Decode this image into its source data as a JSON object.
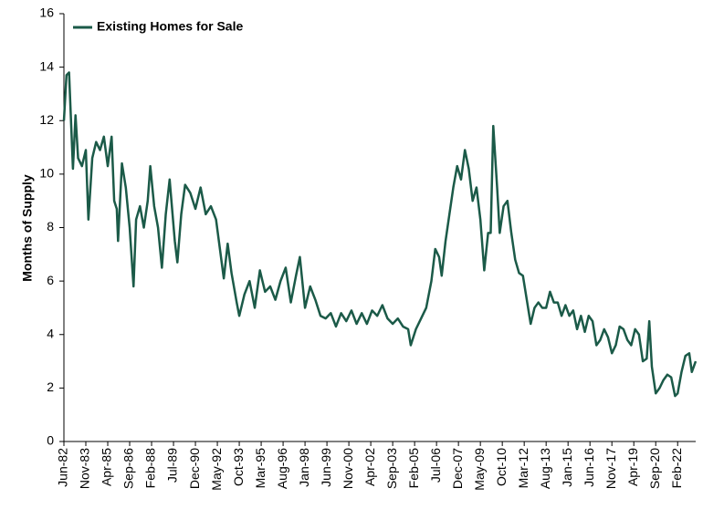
{
  "chart_data": {
    "type": "line",
    "y_label": "Months of Supply",
    "legend": "upper left",
    "xlim": [
      "1982-06",
      "2023-04"
    ],
    "xticks": [
      {
        "value": "1982-06",
        "label": "Jun-82"
      },
      {
        "value": "1983-11",
        "label": "Nov-83"
      },
      {
        "value": "1985-04",
        "label": "Apr-85"
      },
      {
        "value": "1986-09",
        "label": "Sep-86"
      },
      {
        "value": "1988-02",
        "label": "Feb-88"
      },
      {
        "value": "1989-07",
        "label": "Jul-89"
      },
      {
        "value": "1990-12",
        "label": "Dec-90"
      },
      {
        "value": "1992-05",
        "label": "May-92"
      },
      {
        "value": "1993-10",
        "label": "Oct-93"
      },
      {
        "value": "1995-03",
        "label": "Mar-95"
      },
      {
        "value": "1996-08",
        "label": "Aug-96"
      },
      {
        "value": "1998-01",
        "label": "Jan-98"
      },
      {
        "value": "1999-06",
        "label": "Jun-99"
      },
      {
        "value": "2000-11",
        "label": "Nov-00"
      },
      {
        "value": "2002-04",
        "label": "Apr-02"
      },
      {
        "value": "2003-09",
        "label": "Sep-03"
      },
      {
        "value": "2005-02",
        "label": "Feb-05"
      },
      {
        "value": "2006-07",
        "label": "Jul-06"
      },
      {
        "value": "2007-12",
        "label": "Dec-07"
      },
      {
        "value": "2009-05",
        "label": "May-09"
      },
      {
        "value": "2010-10",
        "label": "Oct-10"
      },
      {
        "value": "2012-03",
        "label": "Mar-12"
      },
      {
        "value": "2013-08",
        "label": "Aug-13"
      },
      {
        "value": "2015-01",
        "label": "Jan-15"
      },
      {
        "value": "2016-06",
        "label": "Jun-16"
      },
      {
        "value": "2017-11",
        "label": "Nov-17"
      },
      {
        "value": "2019-04",
        "label": "Apr-19"
      },
      {
        "value": "2020-09",
        "label": "Sep-20"
      },
      {
        "value": "2022-02",
        "label": "Feb-22"
      }
    ],
    "ylim": [
      0,
      16
    ],
    "yticks": [
      0,
      2,
      4,
      6,
      8,
      10,
      12,
      14,
      16
    ],
    "grid": false,
    "x": [
      "1982-06",
      "1982-08",
      "1982-10",
      "1983-01",
      "1983-03",
      "1983-05",
      "1983-08",
      "1983-11",
      "1984-01",
      "1984-04",
      "1984-07",
      "1984-10",
      "1985-01",
      "1985-04",
      "1985-07",
      "1985-09",
      "1985-11",
      "1985-12",
      "1986-03",
      "1986-06",
      "1986-09",
      "1986-12",
      "1987-02",
      "1987-05",
      "1987-08",
      "1987-11",
      "1988-01",
      "1988-04",
      "1988-07",
      "1988-10",
      "1989-01",
      "1989-04",
      "1989-08",
      "1989-10",
      "1990-01",
      "1990-04",
      "1990-08",
      "1990-12",
      "1991-04",
      "1991-08",
      "1991-12",
      "1992-04",
      "1992-07",
      "1992-10",
      "1993-01",
      "1993-04",
      "1993-08",
      "1993-10",
      "1994-02",
      "1994-06",
      "1994-10",
      "1995-02",
      "1995-06",
      "1995-10",
      "1996-02",
      "1996-06",
      "1996-10",
      "1997-02",
      "1997-06",
      "1997-09",
      "1998-01",
      "1998-05",
      "1998-09",
      "1999-01",
      "1999-05",
      "1999-09",
      "2000-01",
      "2000-05",
      "2000-09",
      "2001-01",
      "2001-05",
      "2001-09",
      "2002-01",
      "2002-05",
      "2002-09",
      "2003-01",
      "2003-05",
      "2003-09",
      "2004-01",
      "2004-05",
      "2004-09",
      "2004-11",
      "2005-03",
      "2005-07",
      "2005-11",
      "2006-03",
      "2006-06",
      "2006-09",
      "2006-11",
      "2007-02",
      "2007-05",
      "2007-08",
      "2007-11",
      "2008-02",
      "2008-05",
      "2008-08",
      "2008-11",
      "2009-02",
      "2009-05",
      "2009-08",
      "2009-11",
      "2010-01",
      "2010-03",
      "2010-06",
      "2010-08",
      "2010-11",
      "2011-02",
      "2011-05",
      "2011-08",
      "2011-11",
      "2012-02",
      "2012-05",
      "2012-08",
      "2012-11",
      "2013-02",
      "2013-05",
      "2013-08",
      "2013-11",
      "2014-02",
      "2014-05",
      "2014-08",
      "2014-11",
      "2015-02",
      "2015-05",
      "2015-08",
      "2015-11",
      "2016-02",
      "2016-05",
      "2016-08",
      "2016-11",
      "2017-02",
      "2017-05",
      "2017-08",
      "2017-11",
      "2018-02",
      "2018-05",
      "2018-08",
      "2018-11",
      "2019-02",
      "2019-05",
      "2019-08",
      "2019-11",
      "2020-02",
      "2020-04",
      "2020-06",
      "2020-09",
      "2020-12",
      "2021-03",
      "2021-06",
      "2021-09",
      "2021-12",
      "2022-02",
      "2022-05",
      "2022-08",
      "2022-11",
      "2023-01",
      "2023-04"
    ],
    "series": [
      {
        "name": "Existing Homes for Sale",
        "color": "#1b5a48",
        "values": [
          12.0,
          13.7,
          13.8,
          10.2,
          12.2,
          10.6,
          10.3,
          10.9,
          8.3,
          10.6,
          11.2,
          10.9,
          11.4,
          10.3,
          11.4,
          9.0,
          8.7,
          7.5,
          10.4,
          9.5,
          8.0,
          5.8,
          8.3,
          8.8,
          8.0,
          9.0,
          10.3,
          8.8,
          8.0,
          6.5,
          8.5,
          9.8,
          7.5,
          6.7,
          8.5,
          9.6,
          9.3,
          8.7,
          9.5,
          8.5,
          8.8,
          8.3,
          7.2,
          6.1,
          7.4,
          6.3,
          5.2,
          4.7,
          5.5,
          6.0,
          5.0,
          6.4,
          5.6,
          5.8,
          5.3,
          6.0,
          6.5,
          5.2,
          6.2,
          6.9,
          5.0,
          5.8,
          5.3,
          4.7,
          4.6,
          4.8,
          4.3,
          4.8,
          4.5,
          4.9,
          4.4,
          4.8,
          4.4,
          4.9,
          4.7,
          5.1,
          4.6,
          4.4,
          4.6,
          4.3,
          4.2,
          3.6,
          4.2,
          4.6,
          5.0,
          6.0,
          7.2,
          6.9,
          6.2,
          7.5,
          8.5,
          9.5,
          10.3,
          9.8,
          10.9,
          10.2,
          9.0,
          9.5,
          8.3,
          6.4,
          7.8,
          7.8,
          11.8,
          9.5,
          7.8,
          8.8,
          9.0,
          7.8,
          6.8,
          6.3,
          6.2,
          5.3,
          4.4,
          5.0,
          5.2,
          5.0,
          5.0,
          5.6,
          5.2,
          5.2,
          4.7,
          5.1,
          4.7,
          4.9,
          4.2,
          4.7,
          4.1,
          4.7,
          4.5,
          3.6,
          3.8,
          4.2,
          3.9,
          3.3,
          3.6,
          4.3,
          4.2,
          3.8,
          3.6,
          4.2,
          4.0,
          3.0,
          3.1,
          4.5,
          2.8,
          1.8,
          2.0,
          2.3,
          2.5,
          2.4,
          1.7,
          1.8,
          2.6,
          3.2,
          3.3,
          2.6,
          3.0
        ]
      }
    ]
  }
}
